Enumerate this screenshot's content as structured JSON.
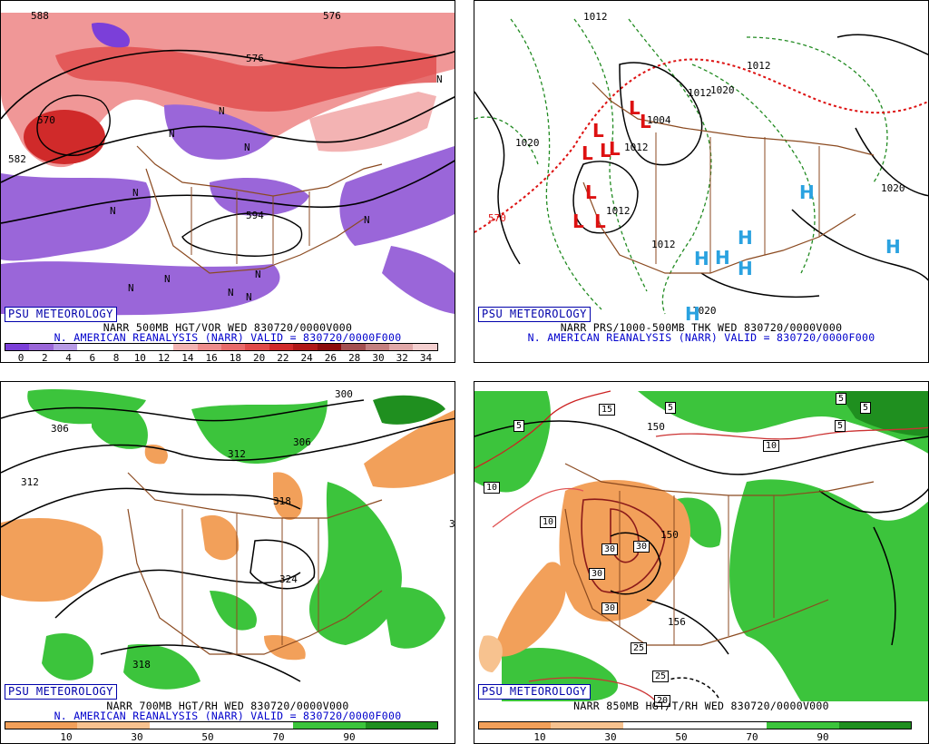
{
  "badge": "PSU METEOROLOGY",
  "panels": {
    "p1": {
      "title_line": "NARR 500MB HGT/VOR WED 830720/0000V000",
      "subtitle_line": "N. AMERICAN REANALYSIS (NARR) VALID = 830720/0000F000",
      "contour_labels": [
        "588",
        "582",
        "570",
        "576",
        "594",
        "576"
      ],
      "vort_markers": [
        "N",
        "N",
        "N",
        "N",
        "N",
        "N",
        "N",
        "N",
        "N",
        "N",
        "N",
        "N"
      ],
      "colorbar": {
        "ticks": [
          "0",
          "2",
          "4",
          "6",
          "8",
          "10",
          "12",
          "14",
          "16",
          "18",
          "20",
          "22",
          "24",
          "26",
          "28",
          "30",
          "32",
          "34"
        ],
        "colors": [
          "#7b3fd9",
          "#9a66d9",
          "#b79be6",
          "#ffffff",
          "#ffffff",
          "#ffffff",
          "#ffffff",
          "#f3b3b3",
          "#ee8c8c",
          "#e86a6a",
          "#e04a4a",
          "#d02a2a",
          "#b01818",
          "#8c0c0c",
          "#a45050",
          "#c48080",
          "#e0a8a8",
          "#f4d0d0"
        ]
      }
    },
    "p2": {
      "title_line": "NARR PRS/1000-500MB THK WED 830720/0000V000",
      "subtitle_line": "N. AMERICAN REANALYSIS (NARR) VALID = 830720/0000F000",
      "contour_labels": [
        "1012",
        "1012",
        "1020",
        "1012",
        "1012",
        "1004",
        "1012",
        "1012",
        "1020",
        "1020",
        "570",
        "1020"
      ],
      "lows": [
        "L",
        "L",
        "L",
        "L",
        "L",
        "L",
        "L",
        "L",
        "L"
      ],
      "highs": [
        "H",
        "H",
        "H",
        "H",
        "H",
        "H",
        "H",
        "H"
      ]
    },
    "p3": {
      "title_line": "NARR 700MB HGT/RH WED 830720/0000V000",
      "subtitle_line": "N. AMERICAN REANALYSIS (NARR) VALID = 830720/0000F000",
      "contour_labels": [
        "300",
        "306",
        "312",
        "312",
        "306",
        "318",
        "324",
        "318",
        "3"
      ],
      "colorbar": {
        "ticks": [
          "10",
          "30",
          "50",
          "70",
          "90"
        ],
        "colors": [
          "#f2a05a",
          "#f7c28f",
          "#ffffff",
          "#ffffff",
          "#3cc43c",
          "#1f8f1f"
        ]
      }
    },
    "p4": {
      "title_line": "NARR 850MB HGT/T/RH WED 830720/0000V000",
      "subtitle_line": "",
      "contour_labels": [
        "150",
        "150",
        "156"
      ],
      "temp_boxes": [
        "5",
        "15",
        "5",
        "5",
        "5",
        "5",
        "10",
        "10",
        "10",
        "30",
        "30",
        "30",
        "30",
        "25",
        "25",
        "20"
      ],
      "colorbar": {
        "ticks": [
          "10",
          "30",
          "50",
          "70",
          "90"
        ],
        "colors": [
          "#f2a05a",
          "#f7c28f",
          "#ffffff",
          "#ffffff",
          "#3cc43c",
          "#1f8f1f"
        ]
      }
    }
  }
}
